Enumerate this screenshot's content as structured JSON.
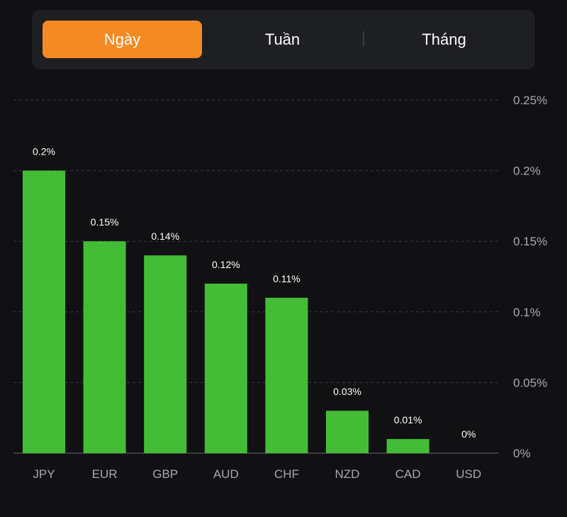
{
  "tabs": [
    {
      "label": "Ngày",
      "active": true
    },
    {
      "label": "Tuần",
      "active": false
    },
    {
      "label": "Tháng",
      "active": false
    }
  ],
  "colors": {
    "accent": "#f58a22",
    "bar": "#44bd36",
    "background": "#111114",
    "grid": "#3c3d40"
  },
  "chart_data": {
    "type": "bar",
    "title": "",
    "xlabel": "",
    "ylabel": "",
    "categories": [
      "JPY",
      "EUR",
      "GBP",
      "AUD",
      "CHF",
      "NZD",
      "CAD",
      "USD"
    ],
    "values": [
      0.2,
      0.15,
      0.14,
      0.12,
      0.11,
      0.03,
      0.01,
      0
    ],
    "data_labels": [
      "0.2%",
      "0.15%",
      "0.14%",
      "0.12%",
      "0.11%",
      "0.03%",
      "0.01%",
      "0%"
    ],
    "ylim": [
      0,
      0.25
    ],
    "yticks": [
      0,
      0.05,
      0.1,
      0.15,
      0.2,
      0.25
    ],
    "ytick_labels": [
      "0%",
      "0.05%",
      "0.1%",
      "0.15%",
      "0.2%",
      "0.25%"
    ],
    "y_axis_position": "right",
    "grid": true
  }
}
